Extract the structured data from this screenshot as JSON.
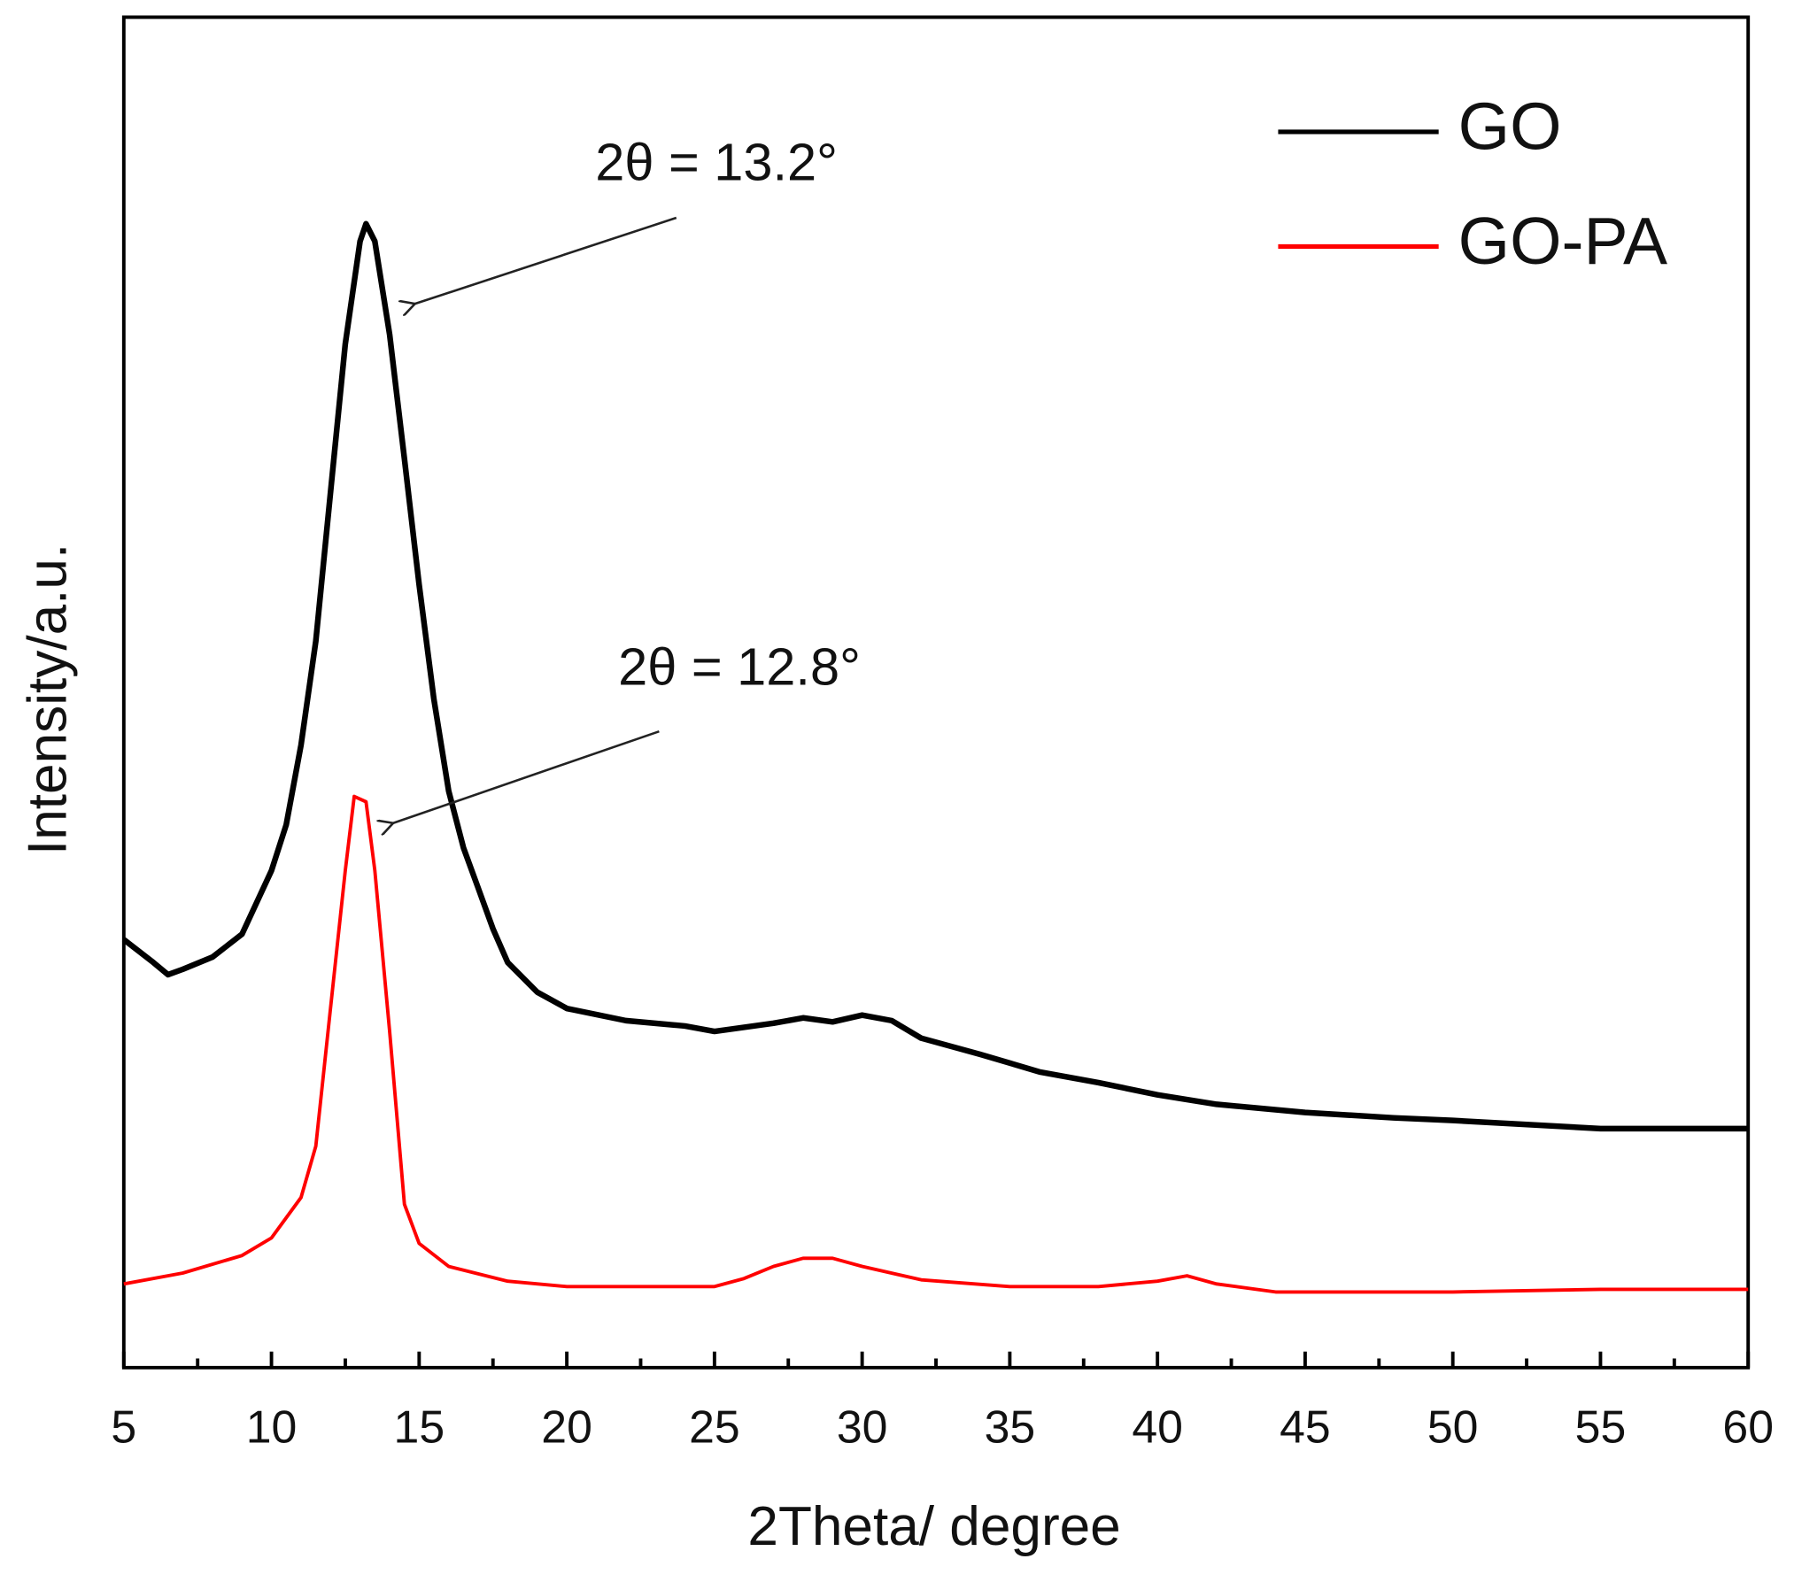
{
  "chart_data": {
    "type": "line",
    "x_label": "2Theta/ degree",
    "y_label": "Intensity/a.u.",
    "xlim": [
      5,
      60
    ],
    "xticks": [
      5,
      10,
      15,
      20,
      25,
      30,
      35,
      40,
      45,
      50,
      55,
      60
    ],
    "xminorticks": [
      7.5,
      12.5,
      17.5,
      22.5,
      27.5,
      32.5,
      37.5,
      42.5,
      47.5,
      52.5,
      57.5
    ],
    "ylim": [
      0,
      100
    ],
    "legend": "upper right",
    "annotations": [
      {
        "text": "2θ = 13.2°",
        "x": 13.2
      },
      {
        "text": "2θ = 12.8°",
        "x": 12.8
      }
    ],
    "series": [
      {
        "name": "GO",
        "color": "#000000",
        "x": [
          5,
          6,
          6.5,
          7,
          8,
          9,
          10,
          10.5,
          11,
          11.5,
          12,
          12.5,
          13,
          13.2,
          13.5,
          14,
          14.5,
          15,
          15.5,
          16,
          16.5,
          17,
          17.5,
          18,
          19,
          20,
          22,
          24,
          25,
          27,
          28,
          29,
          30,
          31,
          32,
          34,
          36,
          38,
          40,
          42,
          45,
          48,
          50,
          55,
          60
        ],
        "values": [
          31.7,
          30.0,
          29.1,
          29.5,
          30.4,
          32.1,
          36.8,
          40.2,
          46.1,
          53.8,
          64.8,
          75.8,
          83.4,
          84.7,
          83.4,
          76.5,
          67.3,
          58.0,
          49.5,
          42.7,
          38.5,
          35.5,
          32.5,
          30.0,
          27.8,
          26.6,
          25.7,
          25.3,
          24.9,
          25.5,
          25.9,
          25.6,
          26.1,
          25.7,
          24.4,
          23.2,
          21.9,
          21.1,
          20.2,
          19.5,
          18.9,
          18.5,
          18.3,
          17.7,
          17.7
        ]
      },
      {
        "name": "GO-PA",
        "color": "#ff0000",
        "x": [
          5,
          7,
          9,
          10,
          11,
          11.5,
          12,
          12.5,
          12.8,
          13.2,
          13.5,
          14,
          14.5,
          15,
          16,
          18,
          20,
          25,
          26,
          27,
          28,
          29,
          30,
          32,
          35,
          38,
          40,
          41,
          42,
          44,
          50,
          55,
          60
        ],
        "values": [
          6.2,
          7.0,
          8.3,
          9.6,
          12.6,
          16.4,
          26.6,
          36.8,
          42.3,
          41.9,
          36.8,
          24.9,
          12.1,
          9.2,
          7.5,
          6.4,
          6.0,
          6.0,
          6.6,
          7.5,
          8.1,
          8.1,
          7.5,
          6.5,
          6.0,
          6.0,
          6.4,
          6.8,
          6.2,
          5.6,
          5.6,
          5.8,
          5.8
        ]
      }
    ]
  }
}
